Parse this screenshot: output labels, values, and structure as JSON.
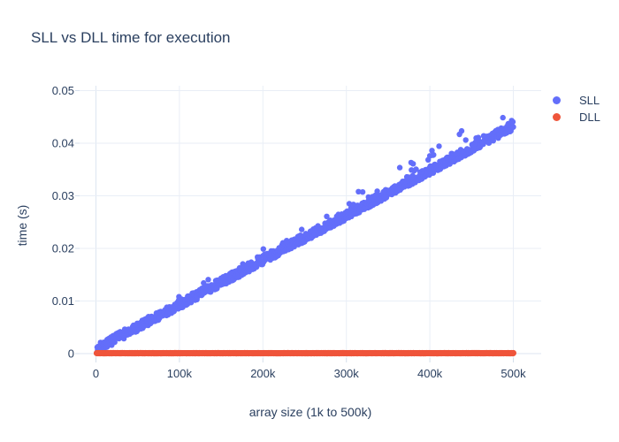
{
  "chart_data": {
    "type": "scatter",
    "title": "SLL vs DLL time for execution",
    "xlabel": "array size (1k to 500k)",
    "ylabel": "time (s)",
    "grid": true,
    "legend_position": "right",
    "x_range": [
      -20000,
      533000
    ],
    "y_range": [
      -0.0008,
      0.0509
    ],
    "x_ticks": [
      {
        "value": 0,
        "label": "0"
      },
      {
        "value": 100000,
        "label": "100k"
      },
      {
        "value": 200000,
        "label": "200k"
      },
      {
        "value": 300000,
        "label": "300k"
      },
      {
        "value": 400000,
        "label": "400k"
      },
      {
        "value": 500000,
        "label": "500k"
      }
    ],
    "y_ticks": [
      {
        "value": 0,
        "label": "0"
      },
      {
        "value": 0.01,
        "label": "0.01"
      },
      {
        "value": 0.02,
        "label": "0.02"
      },
      {
        "value": 0.03,
        "label": "0.03"
      },
      {
        "value": 0.04,
        "label": "0.04"
      },
      {
        "value": 0.05,
        "label": "0.05"
      }
    ],
    "series": [
      {
        "name": "SLL",
        "color": "#636EFA",
        "marker_size_px": 6.4,
        "n_points": 999,
        "x_start": 1000,
        "x_end": 500000,
        "x_step": 500,
        "trend": {
          "type": "linear",
          "slope_s_per_item": 8.5e-08,
          "intercept_s": 0
        },
        "noise": {
          "band_s": 0.0017,
          "spike_prob": 0.11,
          "spike_max_s": 0.0046
        },
        "y_max_observed_s": 0.047,
        "sampled_points": [
          [
            1000,
            0.0001
          ],
          [
            50000,
            0.0046
          ],
          [
            100000,
            0.009
          ],
          [
            150000,
            0.0133
          ],
          [
            200000,
            0.0177
          ],
          [
            250000,
            0.0221
          ],
          [
            300000,
            0.0264
          ],
          [
            350000,
            0.0308
          ],
          [
            400000,
            0.0352
          ],
          [
            450000,
            0.0396
          ],
          [
            500000,
            0.0438
          ]
        ]
      },
      {
        "name": "DLL",
        "color": "#EF553B",
        "marker_size_px": 7,
        "n_points": 999,
        "x_start": 1000,
        "x_end": 500000,
        "x_step": 500,
        "trend": {
          "type": "constant",
          "value_s": 0.0001
        },
        "noise": {
          "band_s": 4e-05,
          "spike_prob": 0,
          "spike_max_s": 0
        },
        "sampled_points": [
          [
            1000,
            0.0001
          ],
          [
            250000,
            0.0001
          ],
          [
            500000,
            0.0001
          ]
        ]
      }
    ]
  },
  "colors": {
    "text": "#2a3f5f",
    "gridline": "#e9eef6",
    "zeroline": "#dde6f1",
    "tick": "#d5dfeb",
    "background": "#ffffff",
    "sll": "#636EFA",
    "dll": "#EF553B"
  }
}
